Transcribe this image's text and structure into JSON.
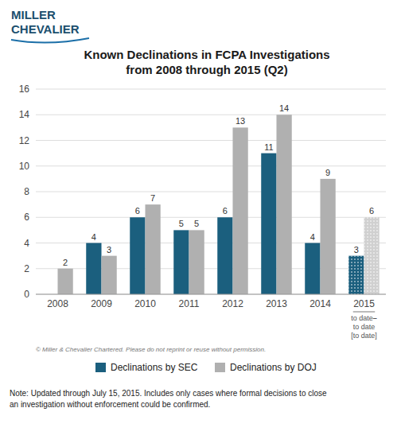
{
  "chart_data": {
    "type": "bar",
    "title": "Known Declinations in FCPA Investigations\nfrom 2008 through 2015 (Q2)",
    "categories": [
      "2008",
      "2009",
      "2010",
      "2011",
      "2012",
      "2013",
      "2014",
      "2015"
    ],
    "series": [
      {
        "name": "Declinations by SEC",
        "color": "#1b5f7e",
        "values": [
          null,
          4,
          6,
          5,
          6,
          11,
          4,
          3
        ]
      },
      {
        "name": "Declinations by DOJ",
        "color": "#b0b0b0",
        "colors": [
          "#b0b0b0",
          "#b0b0b0",
          "#b0b0b0",
          "#b0b0b0",
          "#b0b0b0",
          "#b0b0b0",
          "#b0b0b0",
          "#d0d0d0"
        ],
        "values": [
          2,
          3,
          7,
          5,
          13,
          14,
          9,
          6
        ]
      }
    ],
    "ylim": [
      0,
      16
    ],
    "yticks": [
      0,
      2,
      4,
      6,
      8,
      10,
      12,
      14,
      16
    ],
    "grid": true,
    "data_labels": true,
    "legend": "bottom",
    "annotations": [
      "MILLER",
      "CHEVALIER",
      "to date⎯",
      "to date",
      "[to date]",
      "© Miller & Chevalier Chartered. Please do not reprint or reuse without permission.",
      "Note: Updated through July 15, 2015. Includes only cases where formal decisions to close\nan investigation without enforcement could be confirmed."
    ]
  }
}
